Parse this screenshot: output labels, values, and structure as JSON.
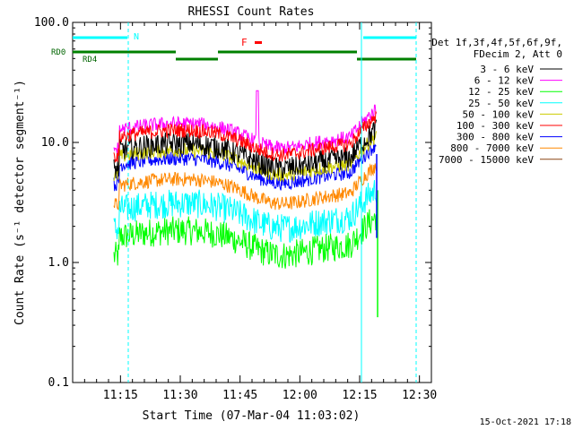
{
  "chart_data": {
    "type": "line",
    "title": "RHESSI Count Rates",
    "xlabel": "Start Time (07-Mar-04 11:03:02)",
    "ylabel": "Count Rate (s⁻¹ detector segment⁻¹)",
    "yscale": "log",
    "ylim": [
      0.1,
      100
    ],
    "xlim_minutes": [
      0,
      80
    ],
    "x_ticks": [
      {
        "label": "11:15",
        "m": 12
      },
      {
        "label": "11:30",
        "m": 27
      },
      {
        "label": "11:45",
        "m": 42
      },
      {
        "label": "12:00",
        "m": 57
      },
      {
        "label": "12:15",
        "m": 72
      },
      {
        "label": "12:30",
        "m": 87
      }
    ],
    "y_ticks": [
      {
        "label": "0.1",
        "v": 0.1
      },
      {
        "label": "1.0",
        "v": 1
      },
      {
        "label": "10.0",
        "v": 10
      },
      {
        "label": "100.0",
        "v": 100
      }
    ],
    "legend_header": [
      "Det 1f,3f,4f,5f,6f,9f,",
      "FDecim 2, Att 0"
    ],
    "series": [
      {
        "name": "3 - 6 keV",
        "color": "#000000",
        "base": 8.5
      },
      {
        "name": "6 - 12 keV",
        "color": "#ff00ff",
        "base": 12.5
      },
      {
        "name": "12 - 25 keV",
        "color": "#00ff00",
        "base": 1.6
      },
      {
        "name": "25 - 50 keV",
        "color": "#00ffff",
        "base": 2.7
      },
      {
        "name": "50 - 100 keV",
        "color": "#cccc00",
        "base": 7.5
      },
      {
        "name": "100 - 300 keV",
        "color": "#ff0000",
        "base": 11.0
      },
      {
        "name": "300 - 800 keV",
        "color": "#0000ff",
        "base": 6.4
      },
      {
        "name": "800 - 7000 keV",
        "color": "#ff8800",
        "base": 4.3
      },
      {
        "name": "7000 - 15000 keV",
        "color": "#8b4513",
        "base": 0
      }
    ],
    "annotations": {
      "N_label": "N",
      "F_label": "F",
      "rd0_label": "RD0",
      "rd4_label": "RD4"
    }
  },
  "footer_date": "15-Oct-2021 17:18"
}
